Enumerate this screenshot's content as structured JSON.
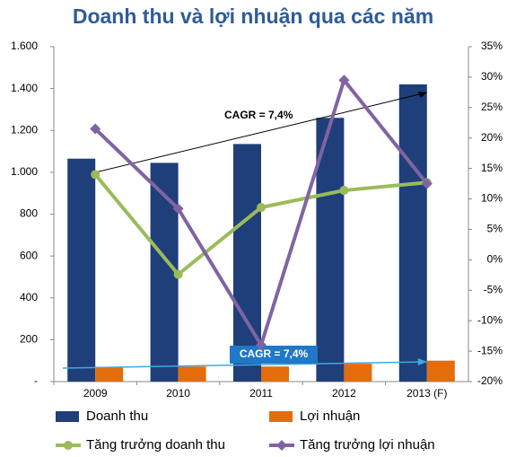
{
  "chart_data": {
    "type": "bar-line",
    "title": "Doanh thu và lợi nhuận qua các năm",
    "categories": [
      "2009",
      "2010",
      "2011",
      "2012",
      "2013 (F)"
    ],
    "series": [
      {
        "name": "Doanh thu",
        "type": "bar",
        "color": "#1f3f7a",
        "values": [
          1065,
          1045,
          1135,
          1260,
          1420
        ]
      },
      {
        "name": "Lợi nhuận",
        "type": "bar",
        "color": "#e46c0a",
        "values": [
          70,
          72,
          72,
          85,
          100
        ]
      },
      {
        "name": "Tăng trưởng doanh thu",
        "type": "line",
        "axis": "y2",
        "marker": "circle",
        "color": "#9bbb59",
        "values": [
          14.0,
          -2.4,
          8.6,
          11.4,
          12.7
        ]
      },
      {
        "name": "Tăng trưởng lợi nhuận",
        "type": "line",
        "axis": "y2",
        "marker": "diamond",
        "color": "#8064a2",
        "values": [
          21.5,
          8.4,
          -14,
          29.5,
          12.5
        ]
      }
    ],
    "annotations": [
      "CAGR = 7,4%",
      "CAGR = 7,4%"
    ],
    "ylim": [
      0,
      1600
    ],
    "yticks": [
      {
        "value": 0,
        "label": "-"
      },
      200,
      400,
      600,
      800,
      {
        "value": 1000,
        "label": "1.000"
      },
      {
        "value": 1200,
        "label": "1.200"
      },
      {
        "value": 1400,
        "label": "1.400"
      },
      {
        "value": 1600,
        "label": "1.600"
      }
    ],
    "y2lim": [
      -20,
      35
    ],
    "y2ticks": [
      {
        "value": -20,
        "label": "-20%"
      },
      {
        "value": -15,
        "label": "-15%"
      },
      {
        "value": -10,
        "label": "-10%"
      },
      {
        "value": -5,
        "label": "-5%"
      },
      {
        "value": 0,
        "label": "0%"
      },
      {
        "value": 5,
        "label": "5%"
      },
      {
        "value": 10,
        "label": "10%"
      },
      {
        "value": 15,
        "label": "15%"
      },
      {
        "value": 20,
        "label": "20%"
      },
      {
        "value": 25,
        "label": "25%"
      },
      {
        "value": 30,
        "label": "30%"
      },
      {
        "value": 35,
        "label": "35%"
      }
    ],
    "grid": false
  }
}
